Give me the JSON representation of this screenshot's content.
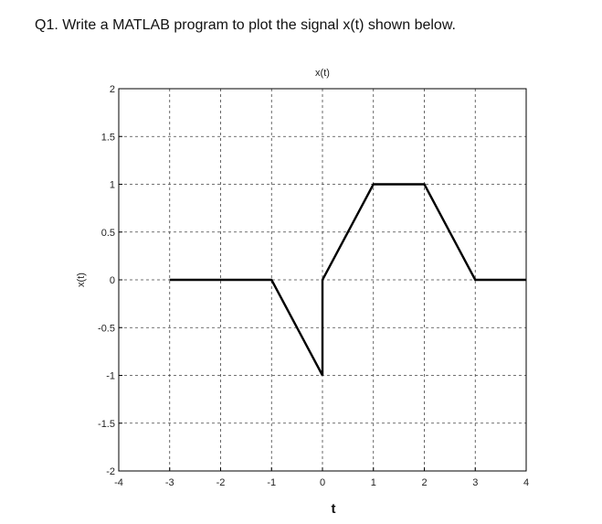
{
  "question": "Q1. Write a MATLAB program to plot the signal x(t) shown below.",
  "chart_data": {
    "type": "line",
    "title": "x(t)",
    "xlabel": "t",
    "ylabel": "x(t)",
    "xlim": [
      -4,
      4
    ],
    "ylim": [
      -2,
      2
    ],
    "grid": true,
    "x_ticks": [
      "-4",
      "-3",
      "-2",
      "-1",
      "0",
      "1",
      "2",
      "3",
      "4"
    ],
    "y_ticks": [
      "2",
      "1.5",
      "1",
      "0.5",
      "0",
      "-0.5",
      "-1",
      "-1.5",
      "-2"
    ],
    "series": [
      {
        "x": [
          -3,
          -1,
          0,
          0,
          1,
          2,
          3,
          4
        ],
        "y": [
          0,
          0,
          -1,
          0,
          1,
          1,
          0,
          0
        ],
        "color": "#000000"
      }
    ]
  }
}
